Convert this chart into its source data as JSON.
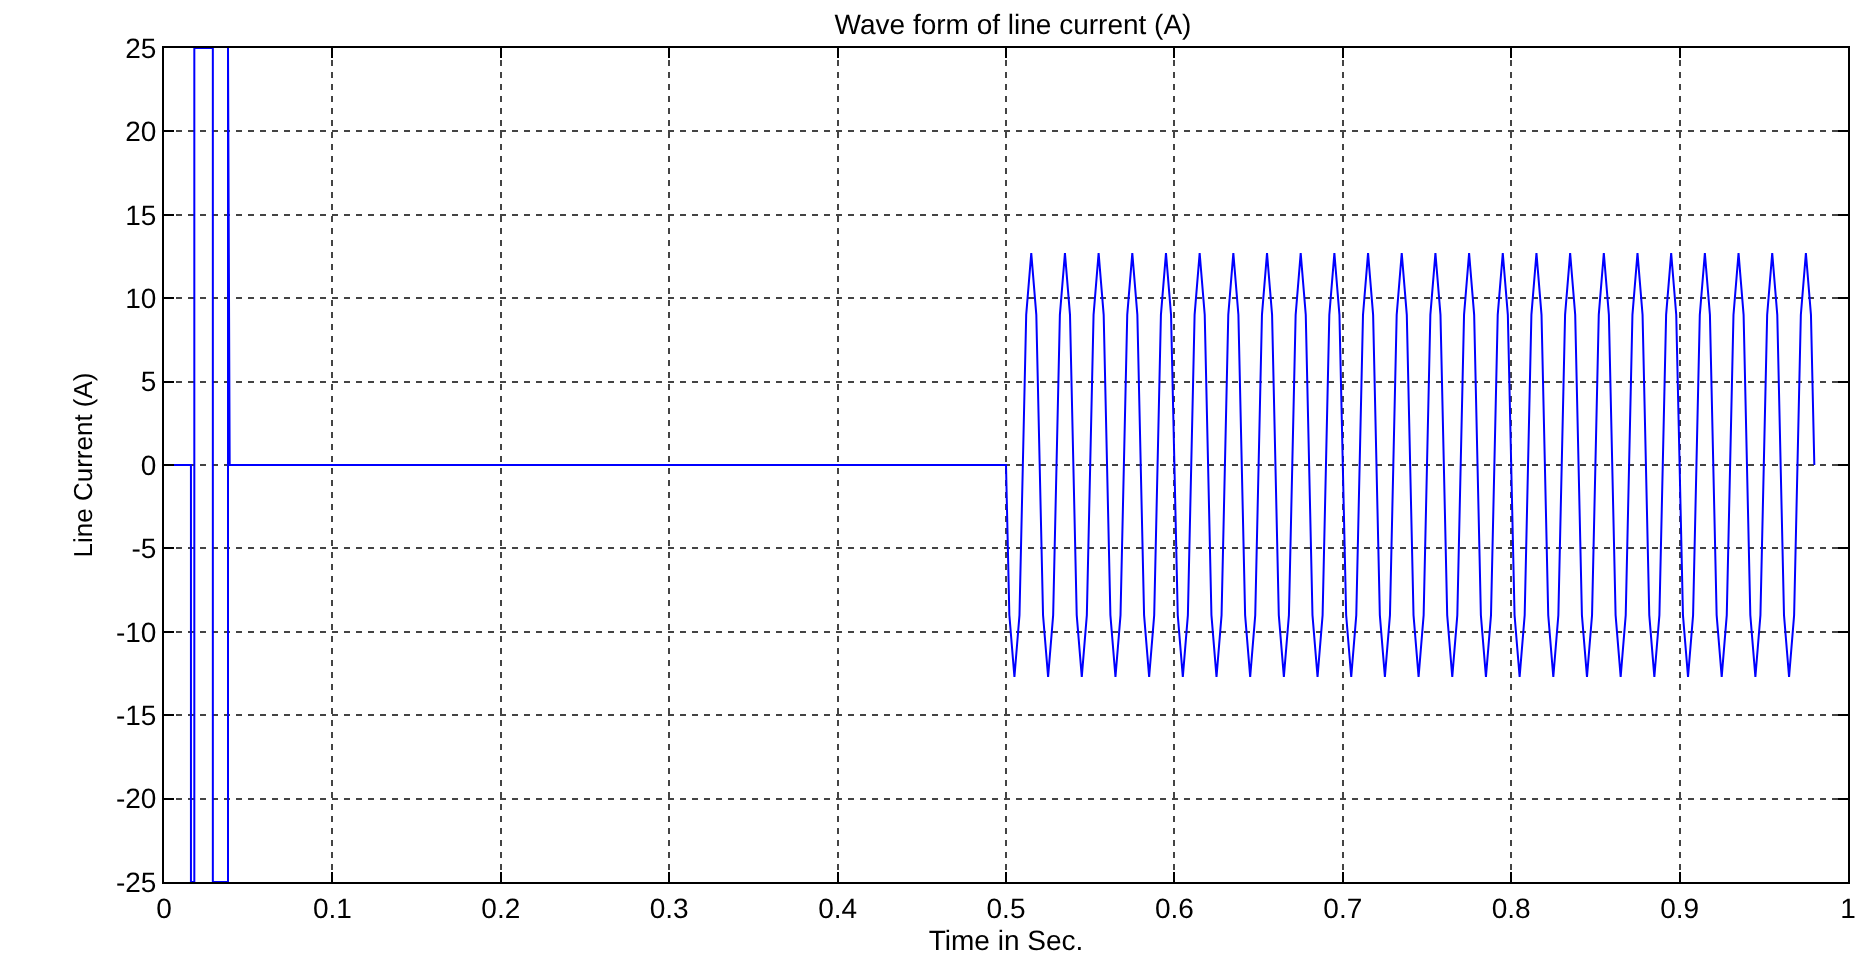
{
  "chart_data": {
    "type": "line",
    "title": "Wave form of line current (A)",
    "xlabel": "Time in Sec.",
    "ylabel": "Line Current (A)",
    "xlim": [
      0,
      1
    ],
    "ylim": [
      -25,
      25
    ],
    "xticks": [
      0,
      0.1,
      0.2,
      0.3,
      0.4,
      0.5,
      0.6,
      0.7,
      0.8,
      0.9,
      1
    ],
    "yticks": [
      -25,
      -20,
      -15,
      -10,
      -5,
      0,
      5,
      10,
      15,
      20,
      25
    ],
    "grid": true,
    "line_style": "solid",
    "marker": "none",
    "series": [
      {
        "color": "#0000ff",
        "x": [
          0,
          0.016,
          0.016,
          0.018,
          0.018,
          0.029,
          0.029,
          0.038,
          0.038,
          0.039,
          0.5,
          0.502,
          0.505,
          0.508,
          0.51,
          0.512,
          0.515,
          0.518,
          0.52,
          0.522,
          0.525,
          0.528,
          0.53,
          0.532,
          0.535,
          0.538,
          0.54,
          0.542,
          0.545,
          0.548,
          0.55,
          0.552,
          0.555,
          0.558,
          0.56,
          0.562,
          0.565,
          0.568,
          0.57,
          0.572,
          0.575,
          0.578,
          0.58,
          0.582,
          0.585,
          0.588,
          0.59,
          0.592,
          0.595,
          0.598,
          0.6,
          0.602,
          0.605,
          0.608,
          0.61,
          0.612,
          0.615,
          0.618,
          0.62,
          0.622,
          0.625,
          0.628,
          0.63,
          0.632,
          0.635,
          0.638,
          0.64,
          0.642,
          0.645,
          0.648,
          0.65,
          0.652,
          0.655,
          0.658,
          0.66,
          0.662,
          0.665,
          0.668,
          0.67,
          0.672,
          0.675,
          0.678,
          0.68,
          0.682,
          0.685,
          0.688,
          0.69,
          0.692,
          0.695,
          0.698,
          0.7,
          0.702,
          0.705,
          0.708,
          0.71,
          0.712,
          0.715,
          0.718,
          0.72,
          0.722,
          0.725,
          0.728,
          0.73,
          0.732,
          0.735,
          0.738,
          0.74,
          0.742,
          0.745,
          0.748,
          0.75,
          0.752,
          0.755,
          0.758,
          0.76,
          0.762,
          0.765,
          0.768,
          0.77,
          0.772,
          0.775,
          0.778,
          0.78,
          0.782,
          0.785,
          0.788,
          0.79,
          0.792,
          0.795,
          0.798,
          0.8,
          0.802,
          0.805,
          0.808,
          0.81,
          0.812,
          0.815,
          0.818,
          0.82,
          0.822,
          0.825,
          0.828,
          0.83,
          0.832,
          0.835,
          0.838,
          0.84,
          0.842,
          0.845,
          0.848,
          0.85,
          0.852,
          0.855,
          0.858,
          0.86,
          0.862,
          0.865,
          0.868,
          0.87,
          0.872,
          0.875,
          0.878,
          0.88,
          0.882,
          0.885,
          0.888,
          0.89,
          0.892,
          0.895,
          0.898,
          0.9,
          0.902,
          0.905,
          0.908,
          0.91,
          0.912,
          0.915,
          0.918,
          0.92,
          0.922,
          0.925,
          0.928,
          0.93,
          0.932,
          0.935,
          0.938,
          0.94,
          0.942,
          0.945,
          0.948,
          0.95,
          0.952,
          0.955,
          0.958,
          0.96,
          0.962,
          0.965,
          0.968,
          0.97,
          0.972,
          0.975,
          0.978,
          0.98
        ],
        "values": [
          0,
          0,
          -25,
          -25,
          25,
          25,
          -25,
          -25,
          25,
          0,
          0,
          -9,
          -12.7,
          -9,
          0,
          9,
          12.7,
          9,
          0,
          -9,
          -12.7,
          -9,
          0,
          9,
          12.7,
          9,
          0,
          -9,
          -12.7,
          -9,
          0,
          9,
          12.7,
          9,
          0,
          -9,
          -12.7,
          -9,
          0,
          9,
          12.7,
          9,
          0,
          -9,
          -12.7,
          -9,
          0,
          9,
          12.7,
          9,
          0,
          -9,
          -12.7,
          -9,
          0,
          9,
          12.7,
          9,
          0,
          -9,
          -12.7,
          -9,
          0,
          9,
          12.7,
          9,
          0,
          -9,
          -12.7,
          -9,
          0,
          9,
          12.7,
          9,
          0,
          -9,
          -12.7,
          -9,
          0,
          9,
          12.7,
          9,
          0,
          -9,
          -12.7,
          -9,
          0,
          9,
          12.7,
          9,
          0,
          -9,
          -12.7,
          -9,
          0,
          9,
          12.7,
          9,
          0,
          -9,
          -12.7,
          -9,
          0,
          9,
          12.7,
          9,
          0,
          -9,
          -12.7,
          -9,
          0,
          9,
          12.7,
          9,
          0,
          -9,
          -12.7,
          -9,
          0,
          9,
          12.7,
          9,
          0,
          -9,
          -12.7,
          -9,
          0,
          9,
          12.7,
          9,
          0,
          -9,
          -12.7,
          -9,
          0,
          9,
          12.7,
          9,
          0,
          -9,
          -12.7,
          -9,
          0,
          9,
          12.7,
          9,
          0,
          -9,
          -12.7,
          -9,
          0,
          9,
          12.7,
          9,
          0,
          -9,
          -12.7,
          -9,
          0,
          9,
          12.7,
          9,
          0,
          -9,
          -12.7,
          -9,
          0,
          9,
          12.7,
          9,
          0,
          -9,
          -12.7,
          -9,
          0,
          9,
          12.7,
          9,
          0,
          -9,
          -12.7,
          -9,
          0,
          9,
          12.7,
          9,
          0,
          -9,
          -12.7,
          -9,
          0,
          9,
          12.7,
          9,
          0,
          -9,
          -12.7,
          -9,
          0,
          9,
          12.7,
          9,
          0
        ]
      }
    ]
  }
}
